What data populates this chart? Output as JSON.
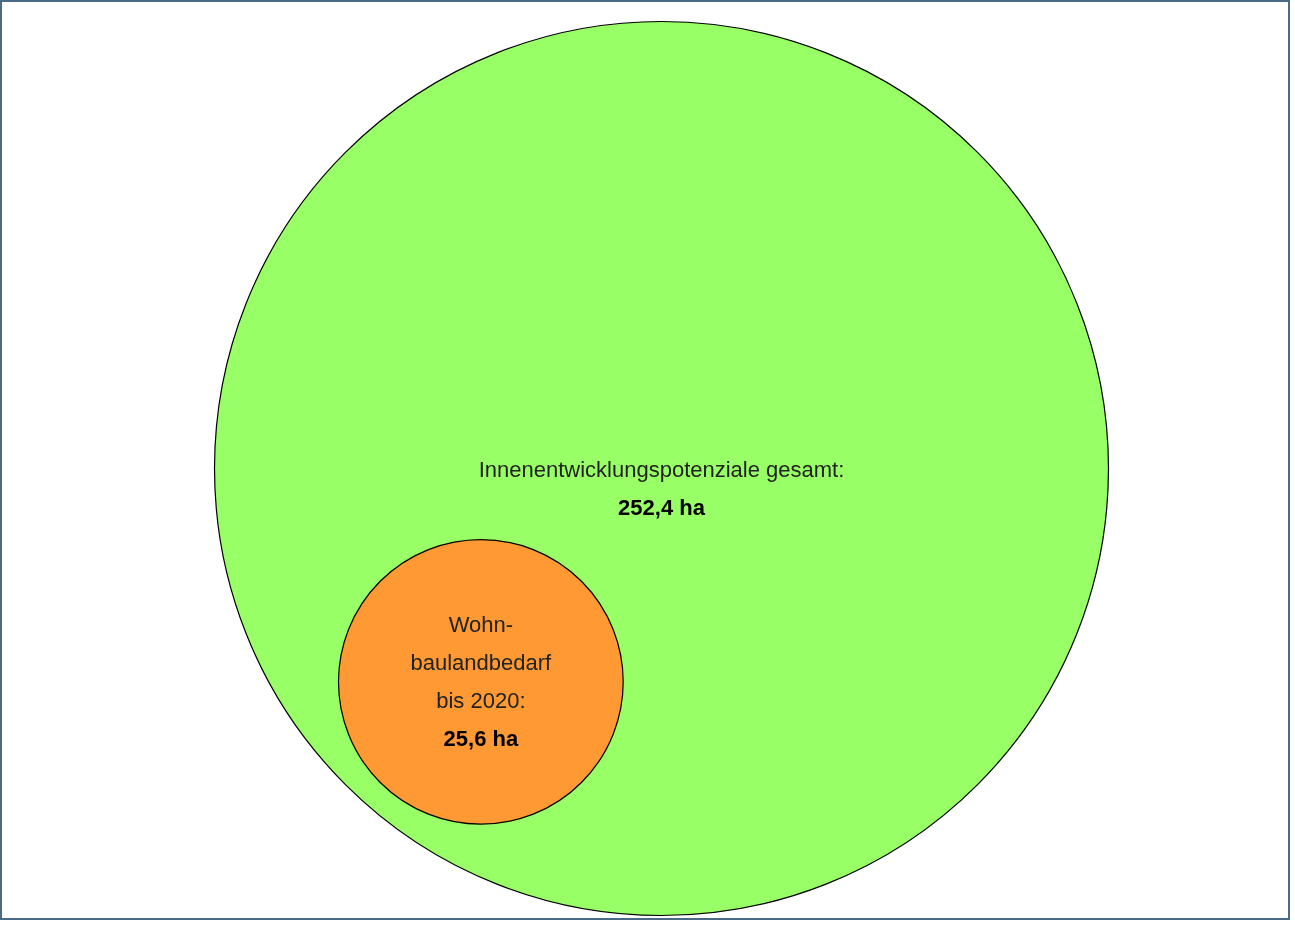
{
  "chart_data": {
    "type": "other",
    "categories": [
      null,
      null
    ],
    "annotations": [
      "Innenentwicklungspotenziale gesamt:",
      "Wohn-\nbaulandbedarf\nbis 2020:"
    ],
    "values": [
      252.4,
      25.6
    ],
    "value_labels": [
      "252,4 ha",
      "25,6 ha"
    ],
    "colors": [
      "#99ff66",
      "#ff9933"
    ]
  }
}
